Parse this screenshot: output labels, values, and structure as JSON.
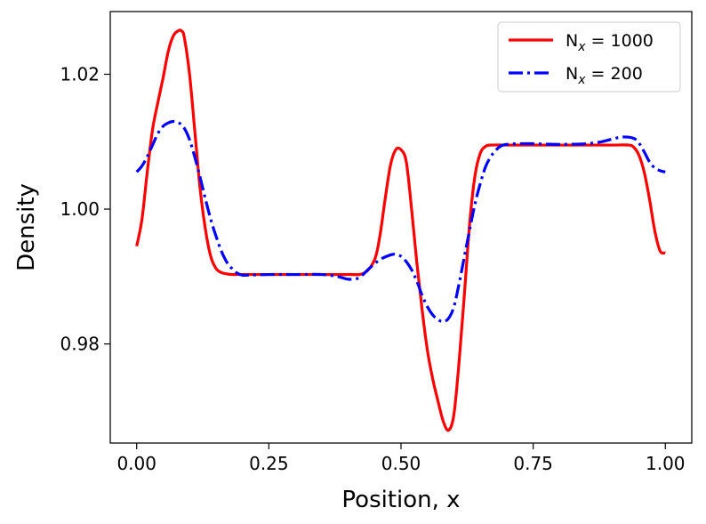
{
  "chart_data": {
    "type": "line",
    "xlabel": "Position, x",
    "ylabel": "Density",
    "xlim": [
      -0.05,
      1.05
    ],
    "ylim": [
      0.9653,
      1.0293
    ],
    "xticks": [
      0.0,
      0.25,
      0.5,
      0.75,
      1.0
    ],
    "xtick_labels": [
      "0.00",
      "0.25",
      "0.50",
      "0.75",
      "1.00"
    ],
    "yticks": [
      0.98,
      1.0,
      1.02
    ],
    "ytick_labels": [
      "0.98",
      "1.00",
      "1.02"
    ],
    "grid": false,
    "legend_position": "top-right",
    "series": [
      {
        "name": "N",
        "name_sub": "x",
        "name_eq": " = 1000",
        "color": "#ff0000",
        "style": "solid",
        "x": [
          0.0,
          0.01,
          0.02,
          0.03,
          0.04,
          0.05,
          0.06,
          0.07,
          0.08,
          0.085,
          0.09,
          0.1,
          0.11,
          0.12,
          0.13,
          0.14,
          0.15,
          0.16,
          0.17,
          0.18,
          0.2,
          0.25,
          0.3,
          0.35,
          0.4,
          0.43,
          0.45,
          0.46,
          0.47,
          0.48,
          0.49,
          0.5,
          0.51,
          0.52,
          0.53,
          0.54,
          0.55,
          0.56,
          0.57,
          0.58,
          0.59,
          0.6,
          0.61,
          0.62,
          0.63,
          0.64,
          0.65,
          0.66,
          0.67,
          0.7,
          0.75,
          0.8,
          0.85,
          0.9,
          0.93,
          0.94,
          0.95,
          0.96,
          0.97,
          0.98,
          0.99,
          1.0
        ],
        "y": [
          0.9945,
          0.9985,
          1.0055,
          1.0118,
          1.0158,
          1.0195,
          1.0235,
          1.0258,
          1.0265,
          1.0264,
          1.0255,
          1.02,
          1.0115,
          1.003,
          0.997,
          0.993,
          0.9912,
          0.9906,
          0.9904,
          0.9903,
          0.9903,
          0.9903,
          0.9903,
          0.9903,
          0.9903,
          0.9905,
          0.9925,
          0.996,
          1.0015,
          1.0065,
          1.0088,
          1.0088,
          1.007,
          1.0,
          0.992,
          0.985,
          0.979,
          0.9748,
          0.9715,
          0.9685,
          0.9672,
          0.9695,
          0.9775,
          0.9875,
          0.998,
          1.005,
          1.0083,
          1.0093,
          1.0095,
          1.0095,
          1.0095,
          1.0095,
          1.0095,
          1.0095,
          1.0095,
          1.0092,
          1.008,
          1.0055,
          1.0015,
          0.9968,
          0.9938,
          0.9935
        ]
      },
      {
        "name": "N",
        "name_sub": "x",
        "name_eq": " = 200",
        "color": "#0000ff",
        "style": "dashdot",
        "x": [
          0.0,
          0.01,
          0.02,
          0.03,
          0.04,
          0.05,
          0.06,
          0.07,
          0.08,
          0.09,
          0.1,
          0.11,
          0.12,
          0.13,
          0.14,
          0.15,
          0.16,
          0.17,
          0.18,
          0.19,
          0.2,
          0.21,
          0.25,
          0.3,
          0.35,
          0.38,
          0.4,
          0.42,
          0.44,
          0.46,
          0.48,
          0.49,
          0.5,
          0.51,
          0.52,
          0.53,
          0.54,
          0.55,
          0.56,
          0.57,
          0.58,
          0.59,
          0.6,
          0.61,
          0.62,
          0.63,
          0.64,
          0.65,
          0.66,
          0.67,
          0.68,
          0.69,
          0.7,
          0.72,
          0.75,
          0.8,
          0.85,
          0.88,
          0.9,
          0.92,
          0.94,
          0.95,
          0.96,
          0.97,
          0.98,
          0.99,
          1.0
        ],
        "y": [
          1.0055,
          1.0064,
          1.0078,
          1.0095,
          1.0112,
          1.0123,
          1.0128,
          1.013,
          1.0128,
          1.012,
          1.0103,
          1.0077,
          1.0047,
          1.0015,
          0.9985,
          0.996,
          0.9938,
          0.9922,
          0.9912,
          0.9905,
          0.9902,
          0.9902,
          0.9903,
          0.9903,
          0.9903,
          0.99,
          0.9896,
          0.9898,
          0.9912,
          0.9925,
          0.9932,
          0.9933,
          0.993,
          0.9922,
          0.991,
          0.9893,
          0.9872,
          0.9855,
          0.9843,
          0.9836,
          0.9833,
          0.9838,
          0.9855,
          0.989,
          0.993,
          0.997,
          1.0008,
          1.0038,
          1.0063,
          1.0078,
          1.0088,
          1.0094,
          1.0096,
          1.0097,
          1.0097,
          1.0096,
          1.0097,
          1.01,
          1.0104,
          1.0107,
          1.0105,
          1.0098,
          1.0085,
          1.007,
          1.0061,
          1.0057,
          1.0055
        ]
      }
    ]
  }
}
